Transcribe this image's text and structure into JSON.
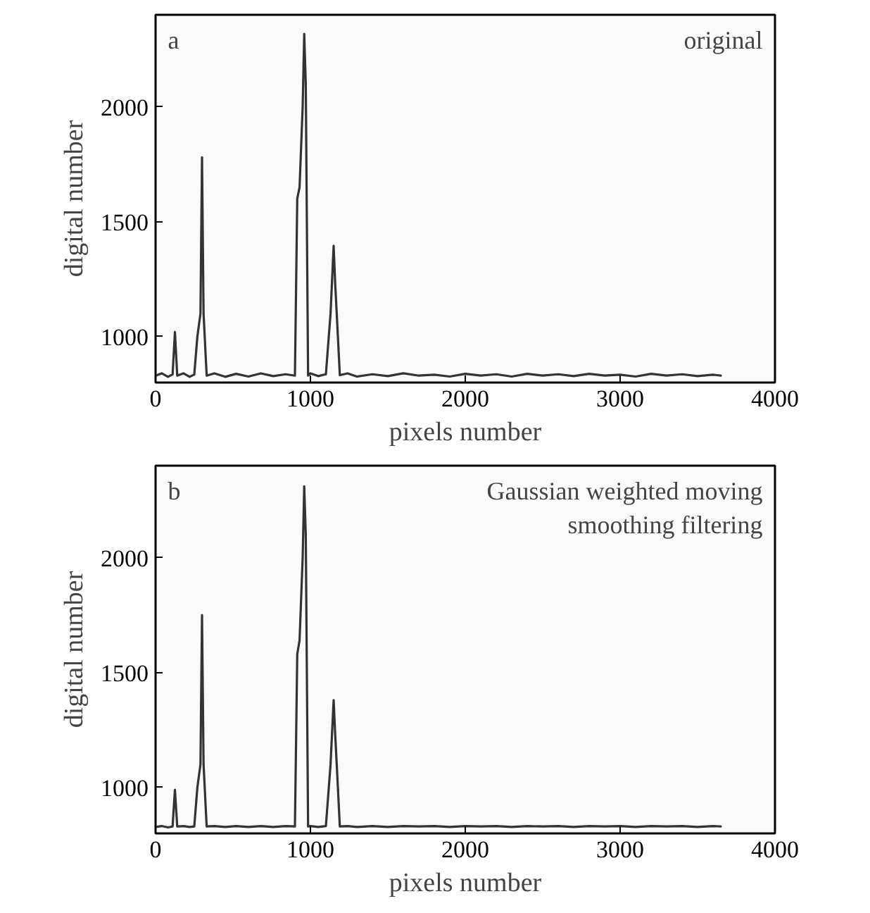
{
  "chart_data": [
    {
      "type": "line",
      "xlabel": "pixels number",
      "ylabel": "digital number",
      "annotations": [
        "a",
        "original"
      ],
      "xlim": [
        0,
        4000
      ],
      "ylim": [
        800,
        2400
      ],
      "xticks": [
        0,
        1000,
        2000,
        3000,
        4000
      ],
      "yticks": [
        1000,
        1500,
        2000
      ],
      "series": [
        {
          "color": "#333333",
          "x": [
            0,
            40,
            80,
            110,
            125,
            140,
            180,
            220,
            250,
            270,
            290,
            300,
            310,
            330,
            380,
            450,
            520,
            600,
            680,
            760,
            840,
            900,
            915,
            930,
            950,
            960,
            970,
            985,
            1000,
            1050,
            1100,
            1130,
            1150,
            1160,
            1170,
            1190,
            1240,
            1300,
            1400,
            1500,
            1600,
            1700,
            1800,
            1900,
            2000,
            2100,
            2200,
            2300,
            2400,
            2500,
            2600,
            2700,
            2800,
            2900,
            3000,
            3100,
            3200,
            3300,
            3400,
            3500,
            3600,
            3650
          ],
          "values": [
            830,
            840,
            825,
            835,
            1020,
            830,
            840,
            825,
            835,
            1000,
            1100,
            1780,
            1100,
            830,
            840,
            825,
            838,
            826,
            840,
            828,
            836,
            830,
            1600,
            1650,
            2000,
            2317,
            2100,
            830,
            840,
            828,
            836,
            1100,
            1395,
            1230,
            1100,
            832,
            840,
            826,
            836,
            828,
            840,
            830,
            834,
            826,
            838,
            830,
            836,
            826,
            838,
            830,
            836,
            828,
            838,
            830,
            834,
            826,
            838,
            830,
            836,
            828,
            834,
            830
          ]
        }
      ]
    },
    {
      "type": "line",
      "xlabel": "pixels number",
      "ylabel": "digital number",
      "annotations": [
        "b",
        "Gaussian weighted moving smoothing filtering"
      ],
      "xlim": [
        0,
        4000
      ],
      "ylim": [
        800,
        2400
      ],
      "xticks": [
        0,
        1000,
        2000,
        3000,
        4000
      ],
      "yticks": [
        1000,
        1500,
        2000
      ],
      "series": [
        {
          "color": "#333333",
          "x": [
            0,
            40,
            80,
            110,
            125,
            140,
            180,
            220,
            250,
            270,
            290,
            300,
            310,
            330,
            380,
            450,
            520,
            600,
            680,
            760,
            840,
            900,
            915,
            930,
            950,
            960,
            970,
            985,
            1000,
            1050,
            1100,
            1130,
            1150,
            1160,
            1170,
            1190,
            1240,
            1300,
            1400,
            1500,
            1600,
            1700,
            1800,
            1900,
            2000,
            2100,
            2200,
            2300,
            2400,
            2500,
            2600,
            2700,
            2800,
            2900,
            3000,
            3100,
            3200,
            3300,
            3400,
            3500,
            3600,
            3650
          ],
          "values": [
            828,
            832,
            826,
            830,
            990,
            830,
            832,
            828,
            830,
            1000,
            1100,
            1750,
            1100,
            830,
            832,
            828,
            832,
            828,
            832,
            828,
            832,
            830,
            1580,
            1640,
            2000,
            2310,
            2100,
            830,
            832,
            828,
            832,
            1100,
            1380,
            1230,
            1100,
            830,
            832,
            828,
            832,
            828,
            832,
            830,
            832,
            828,
            832,
            830,
            832,
            828,
            832,
            830,
            832,
            828,
            832,
            830,
            832,
            828,
            832,
            830,
            832,
            828,
            832,
            830
          ]
        }
      ]
    }
  ]
}
